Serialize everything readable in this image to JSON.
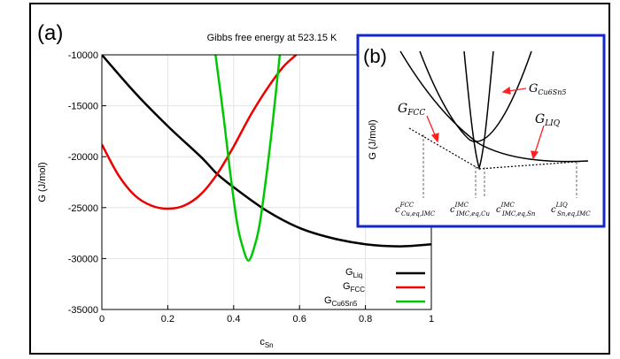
{
  "panel_a": {
    "label": "(a)",
    "title": "Gibbs free energy at 523.15 K",
    "ylabel": "G   (J/mol)",
    "xlabel": {
      "base": "c",
      "sub": "Sn"
    },
    "legend": [
      {
        "base": "G",
        "sub": "Liq"
      },
      {
        "base": "G",
        "sub": "FCC"
      },
      {
        "base": "G",
        "sub": "Cu6Sn5"
      }
    ]
  },
  "panel_b": {
    "label": "(b)",
    "ylabel": "G   (J/mol)",
    "curve_labels": [
      {
        "base": "G",
        "sub": "FCC"
      },
      {
        "base": "G",
        "sub": "Cu6Sn5"
      },
      {
        "base": "G",
        "sub": "LIQ"
      }
    ],
    "x_markers": [
      {
        "base": "c",
        "sup": "FCC",
        "sub": "Cu,eq,IMC"
      },
      {
        "base": "c",
        "sup": "IMC",
        "sub": "IMC,eq,Cu"
      },
      {
        "base": "c",
        "sup": "IMC",
        "sub": "IMC,eq,Sn"
      },
      {
        "base": "c",
        "sup": "LIQ",
        "sub": "Sn,eq,IMC"
      }
    ]
  },
  "chart_data": [
    {
      "type": "line",
      "title": "Gibbs free energy at 523.15 K",
      "xlabel": "cSn",
      "ylabel": "G (J/mol)",
      "xlim": [
        0,
        1
      ],
      "ylim": [
        -35000,
        -10000
      ],
      "xticks": [
        "0",
        "0.2",
        "0.4",
        "0.6",
        "0.8",
        "1"
      ],
      "yticks": [
        "-10000",
        "-15000",
        "-20000",
        "-25000",
        "-30000",
        "-35000"
      ],
      "legend_position": "bottom-right",
      "colors": {
        "liq": "#000000",
        "fcc": "#ee0000",
        "cu6sn5": "#00c800"
      },
      "series": [
        {
          "name": "GLiq",
          "x": [
            0,
            0.1,
            0.2,
            0.3,
            0.35,
            0.4,
            0.5,
            0.6,
            0.7,
            0.8,
            0.9,
            1.0
          ],
          "values": [
            -10000,
            -13700,
            -17000,
            -20000,
            -21700,
            -23000,
            -25300,
            -27000,
            -28000,
            -28600,
            -28800,
            -28600
          ]
        },
        {
          "name": "GFCC",
          "x": [
            0,
            0.05,
            0.1,
            0.15,
            0.2,
            0.25,
            0.3,
            0.35,
            0.4,
            0.45,
            0.5,
            0.55,
            0.59
          ],
          "values": [
            -18800,
            -21800,
            -23800,
            -24800,
            -25100,
            -24800,
            -23700,
            -21700,
            -19000,
            -16000,
            -13400,
            -11200,
            -10000
          ]
        },
        {
          "name": "GCu6Sn5",
          "x": [
            0.345,
            0.37,
            0.39,
            0.41,
            0.425,
            0.445,
            0.465,
            0.48,
            0.5,
            0.52,
            0.54
          ],
          "values": [
            -10000,
            -16200,
            -21700,
            -26400,
            -28600,
            -30200,
            -28600,
            -26400,
            -21700,
            -16200,
            -10000
          ]
        }
      ]
    },
    {
      "type": "line",
      "title": "",
      "ylabel": "G (J/mol)",
      "series": [
        {
          "name": "GFCC"
        },
        {
          "name": "GCu6Sn5"
        },
        {
          "name": "GLIQ"
        }
      ]
    }
  ]
}
